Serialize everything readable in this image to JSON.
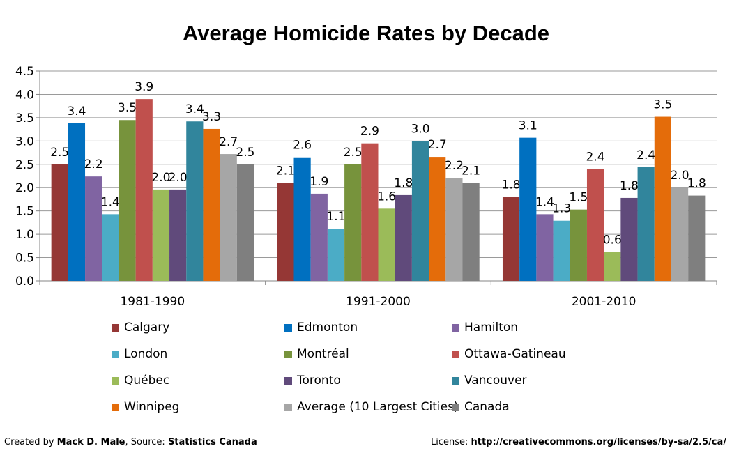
{
  "chart_data": {
    "type": "bar",
    "title": "Average Homicide Rates by Decade",
    "categories": [
      "1981-1990",
      "1991-2000",
      "2001-2010"
    ],
    "ylim": [
      0,
      4.5
    ],
    "yticks": [
      "0.0",
      "0.5",
      "1.0",
      "1.5",
      "2.0",
      "2.5",
      "3.0",
      "3.5",
      "4.0",
      "4.5"
    ],
    "grid": true,
    "legend_position": "bottom",
    "series": [
      {
        "name": "Calgary",
        "color": "#953735",
        "values": [
          2.5,
          2.1,
          1.8
        ],
        "labels": [
          "2.5",
          "2.1",
          "1.8"
        ]
      },
      {
        "name": "Edmonton",
        "color": "#0070C0",
        "values": [
          3.38,
          2.65,
          3.07
        ],
        "labels": [
          "3.4",
          "2.6",
          "3.1"
        ]
      },
      {
        "name": "Hamilton",
        "color": "#8064A2",
        "values": [
          2.24,
          1.87,
          1.43
        ],
        "labels": [
          "2.2",
          "1.9",
          "1.4"
        ]
      },
      {
        "name": "London",
        "color": "#4BACC6",
        "values": [
          1.43,
          1.12,
          1.29
        ],
        "labels": [
          "1.4",
          "1.1",
          "1.3"
        ]
      },
      {
        "name": "Montréal",
        "color": "#77933C",
        "values": [
          3.45,
          2.5,
          1.53
        ],
        "labels": [
          "3.5",
          "2.5",
          "1.5"
        ]
      },
      {
        "name": "Ottawa-Gatineau",
        "color": "#C0504D",
        "values": [
          3.9,
          2.95,
          2.4
        ],
        "labels": [
          "3.9",
          "2.9",
          "2.4"
        ]
      },
      {
        "name": "Québec",
        "color": "#9BBB59",
        "values": [
          1.96,
          1.55,
          0.62
        ],
        "labels": [
          "2.0",
          "1.6",
          "0.6"
        ]
      },
      {
        "name": "Toronto",
        "color": "#604A7B",
        "values": [
          1.96,
          1.84,
          1.78
        ],
        "labels": [
          "2.0",
          "1.8",
          "1.8"
        ]
      },
      {
        "name": "Vancouver",
        "color": "#31859C",
        "values": [
          3.42,
          3.0,
          2.44
        ],
        "labels": [
          "3.4",
          "3.0",
          "2.4"
        ]
      },
      {
        "name": "Winnipeg",
        "color": "#E46C0A",
        "values": [
          3.26,
          2.66,
          3.52
        ],
        "labels": [
          "3.3",
          "2.7",
          "3.5"
        ]
      },
      {
        "name": "Average (10 Largest Cities)",
        "color": "#A6A6A6",
        "values": [
          2.72,
          2.21,
          2.0
        ],
        "labels": [
          "2.7",
          "2.2",
          "2.0"
        ]
      },
      {
        "name": "Canada",
        "color": "#7F7F7F",
        "values": [
          2.5,
          2.1,
          1.83
        ],
        "labels": [
          "2.5",
          "2.1",
          "1.8"
        ]
      }
    ]
  },
  "footer": {
    "created_prefix": "Created by ",
    "author": "Mack D. Male",
    "source_prefix": ", Source: ",
    "source": "Statistics Canada",
    "license_prefix": "License: ",
    "license_url": "http://creativecommons.org/licenses/by-sa/2.5/ca/"
  }
}
